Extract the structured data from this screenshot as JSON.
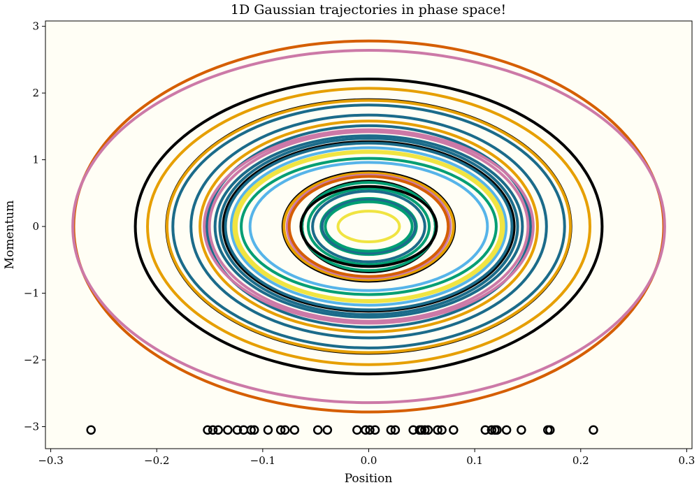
{
  "chart_data": {
    "type": "line",
    "title": "1D Gaussian trajectories in phase space!",
    "xlabel": "Position",
    "ylabel": "Momentum",
    "xlim": [
      -0.305,
      0.305
    ],
    "ylim": [
      -3.33,
      3.08
    ],
    "xticks": [
      -0.3,
      -0.2,
      -0.1,
      0.0,
      0.1,
      0.2,
      0.3
    ],
    "xtick_labels": [
      "−0.3",
      "−0.2",
      "−0.1",
      "0.0",
      "0.1",
      "0.2",
      "0.3"
    ],
    "yticks": [
      -3,
      -2,
      -1,
      0,
      1,
      2,
      3
    ],
    "ytick_labels": [
      "−3",
      "−2",
      "−1",
      "0",
      "1",
      "2",
      "3"
    ],
    "grid": false,
    "background_color": "#fffef5",
    "series": [
      {
        "rx": 0.2783,
        "ry": 2.78,
        "color": "#d55e00"
      },
      {
        "rx": 0.2792,
        "ry": 2.64,
        "color": "#cc79a7"
      },
      {
        "rx": 0.2202,
        "ry": 2.21,
        "color": "#000000"
      },
      {
        "rx": 0.2087,
        "ry": 2.07,
        "color": "#e69f00"
      },
      {
        "rx": 0.1907,
        "ry": 1.9,
        "color": "#000000"
      },
      {
        "rx": 0.1903,
        "ry": 1.89,
        "color": "#e69f00"
      },
      {
        "rx": 0.1848,
        "ry": 1.82,
        "color": "#1b6b8a"
      },
      {
        "rx": 0.1677,
        "ry": 1.67,
        "color": "#1b6b8a"
      },
      {
        "rx": 0.1592,
        "ry": 1.58,
        "color": "#e69f00"
      },
      {
        "rx": 0.1527,
        "ry": 1.51,
        "color": "#1b6b8a"
      },
      {
        "rx": 0.1552,
        "ry": 1.45,
        "color": "#cc79a7"
      },
      {
        "rx": 0.1503,
        "ry": 1.42,
        "color": "#cc79a7"
      },
      {
        "rx": 0.145,
        "ry": 1.36,
        "color": "#1b6b8a"
      },
      {
        "rx": 0.1405,
        "ry": 1.32,
        "color": "#1b6b8a"
      },
      {
        "rx": 0.1372,
        "ry": 1.27,
        "color": "#000000"
      },
      {
        "rx": 0.1352,
        "ry": 1.25,
        "color": "#1b6b8a"
      },
      {
        "rx": 0.1297,
        "ry": 1.18,
        "color": "#56b4e9"
      },
      {
        "rx": 0.1273,
        "ry": 1.13,
        "color": "#f0e442"
      },
      {
        "rx": 0.125,
        "ry": 1.11,
        "color": "#f0e442"
      },
      {
        "rx": 0.1203,
        "ry": 1.02,
        "color": "#009e73"
      },
      {
        "rx": 0.112,
        "ry": 0.96,
        "color": "#56b4e9"
      },
      {
        "rx": 0.0809,
        "ry": 0.82,
        "color": "#000000"
      },
      {
        "rx": 0.08,
        "ry": 0.8,
        "color": "#e69f00"
      },
      {
        "rx": 0.0769,
        "ry": 0.77,
        "color": "#cc79a7"
      },
      {
        "rx": 0.075,
        "ry": 0.75,
        "color": "#d55e00"
      },
      {
        "rx": 0.063,
        "ry": 0.68,
        "color": "#000000"
      },
      {
        "rx": 0.0629,
        "ry": 0.66,
        "color": "#009e73"
      },
      {
        "rx": 0.0571,
        "ry": 0.57,
        "color": "#009e73"
      },
      {
        "rx": 0.064,
        "ry": 0.6,
        "color": "#000000"
      },
      {
        "rx": 0.053,
        "ry": 0.53,
        "color": "#1b6b8a"
      },
      {
        "rx": 0.045,
        "ry": 0.42,
        "color": "#009e73"
      },
      {
        "rx": 0.044,
        "ry": 0.4,
        "color": "#1b6b8a"
      },
      {
        "rx": 0.041,
        "ry": 0.37,
        "color": "#009e73"
      },
      {
        "rx": 0.029,
        "ry": 0.23,
        "color": "#f0e442"
      }
    ],
    "markers": {
      "y": -3.05,
      "style": "open-circle",
      "color": "#000000",
      "x": [
        -0.262,
        -0.152,
        -0.147,
        -0.142,
        -0.133,
        -0.124,
        -0.118,
        -0.111,
        -0.108,
        -0.095,
        -0.083,
        -0.079,
        -0.07,
        -0.048,
        -0.039,
        -0.011,
        -0.003,
        0.001,
        0.006,
        0.021,
        0.025,
        0.042,
        0.048,
        0.05,
        0.053,
        0.056,
        0.065,
        0.069,
        0.08,
        0.11,
        0.116,
        0.119,
        0.121,
        0.13,
        0.144,
        0.169,
        0.171,
        0.212
      ]
    }
  }
}
